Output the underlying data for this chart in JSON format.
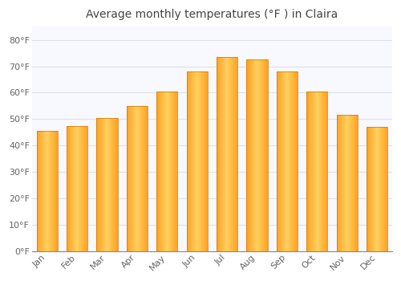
{
  "title": "Average monthly temperatures (°F ) in Claira",
  "months": [
    "Jan",
    "Feb",
    "Mar",
    "Apr",
    "May",
    "Jun",
    "Jul",
    "Aug",
    "Sep",
    "Oct",
    "Nov",
    "Dec"
  ],
  "values": [
    45.5,
    47.5,
    50.5,
    55.0,
    60.5,
    68.0,
    73.5,
    72.5,
    68.0,
    60.5,
    51.5,
    47.0
  ],
  "bar_color": "#FFA020",
  "bar_highlight": "#FFD060",
  "bar_edge_color": "#E08000",
  "background_color": "#FFFFFF",
  "plot_bg_color": "#F8F8FF",
  "grid_color": "#E0E0E8",
  "yticks": [
    0,
    10,
    20,
    30,
    40,
    50,
    60,
    70,
    80
  ],
  "ytick_labels": [
    "0°F",
    "10°F",
    "20°F",
    "30°F",
    "40°F",
    "50°F",
    "60°F",
    "70°F",
    "80°F"
  ],
  "ylim": [
    0,
    85
  ],
  "title_fontsize": 10,
  "tick_fontsize": 8,
  "title_color": "#444444",
  "tick_color": "#666666",
  "font_family": "DejaVu Sans"
}
